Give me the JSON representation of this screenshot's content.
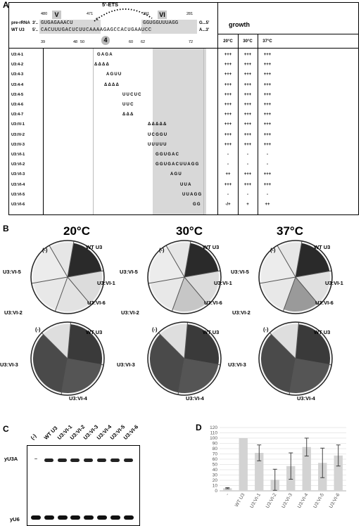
{
  "panel_a": {
    "label": "A",
    "ets_label": "5'-ETS",
    "box_v": "V",
    "box_vi": "VI",
    "box_4": "4",
    "pre_rrna_label": "pre-rRNA",
    "wt_u3_label": "WT U3",
    "pre_3prime": "3'..",
    "pre_seq_left": "GUGAGAAACU",
    "pre_seq_right": "GGUGGUUUAGG",
    "pre_end": "G...5'",
    "wt_5prime": "5'..",
    "wt_seq": "CACUUUGACUCUUCAAAAGAGCCACUGAAUCC",
    "wt_end": "A...3'",
    "num_480": "480",
    "num_471": "471",
    "num_c": "C",
    "num_291": "291",
    "num_281": "281",
    "num_39": "39",
    "num_48": "48",
    "num_50": "50",
    "num_60": "60",
    "num_62": "62",
    "num_72": "72",
    "growth_title": "growth",
    "temps": [
      "20°C",
      "30°C",
      "37°C"
    ],
    "rows": [
      {
        "name": "U3:4-1",
        "seq": "GAGA",
        "g": [
          "+++",
          "+++",
          "+++"
        ]
      },
      {
        "name": "U3:4-2",
        "seq": "ΔΔΔΔ",
        "g": [
          "+++",
          "+++",
          "+++"
        ]
      },
      {
        "name": "U3:4-3",
        "seq": "AGUU",
        "g": [
          "+++",
          "+++",
          "+++"
        ]
      },
      {
        "name": "U3:4-4",
        "seq": "ΔΔΔΔ",
        "g": [
          "+++",
          "+++",
          "+++"
        ]
      },
      {
        "name": "U3:4-5",
        "seq": "UUCUC",
        "g": [
          "+++",
          "+++",
          "+++"
        ]
      },
      {
        "name": "U3:4-6",
        "seq": "UUC",
        "g": [
          "+++",
          "+++",
          "+++"
        ]
      },
      {
        "name": "U3:4-7",
        "seq": "ΔΔΔ",
        "g": [
          "+++",
          "+++",
          "+++"
        ]
      },
      {
        "name": "U3:IV-1",
        "seq": "ΔΔΔΔΔ",
        "g": [
          "+++",
          "+++",
          "+++"
        ]
      },
      {
        "name": "U3:IV-2",
        "seq": "UCGGU",
        "g": [
          "+++",
          "+++",
          "+++"
        ]
      },
      {
        "name": "U3:IV-3",
        "seq": "UUUUU",
        "g": [
          "+++",
          "+++",
          "+++"
        ]
      },
      {
        "name": "U3:VI-1",
        "seq": "GGUGAC",
        "g": [
          "-",
          "-",
          "-"
        ]
      },
      {
        "name": "U3:VI-2",
        "seq": "GGUGACUUAGG",
        "g": [
          "-",
          "-",
          "-"
        ]
      },
      {
        "name": "U3:VI-3",
        "seq": "AGU",
        "g": [
          "++",
          "+++",
          "+++"
        ]
      },
      {
        "name": "U3:VI-4",
        "seq": "UUA",
        "g": [
          "+++",
          "+++",
          "+++"
        ]
      },
      {
        "name": "U3:VI-5",
        "seq": "UUAGG",
        "g": [
          "-",
          "-",
          "-"
        ]
      },
      {
        "name": "U3:VI-6",
        "seq": "GG",
        "g": [
          "-/+",
          "+",
          "++"
        ]
      }
    ]
  },
  "panel_b": {
    "label": "B",
    "temps": [
      "20°C",
      "30°C",
      "37°C"
    ],
    "plate_labels_top": [
      "(-)",
      "WT U3",
      "U3:VI-1",
      "U3:VI-6",
      "U3:VI-2",
      "U3:VI-5"
    ],
    "plate_labels_bottom": [
      "(-)",
      "WT U3",
      "U3:VI-3",
      "U3:VI-4"
    ]
  },
  "panel_c": {
    "label": "C",
    "columns": [
      "(-)",
      "WT U3",
      "U3:VI-1",
      "U3:VI-2",
      "U3:VI-3",
      "U3:VI-4",
      "U3:VI-5",
      "U3:VI-6"
    ],
    "band_top": "yU3A",
    "band_bottom": "yU6"
  },
  "chart_data": {
    "type": "bar",
    "title": "",
    "label": "D",
    "categories": [
      "-",
      "WT U3",
      "U3:VI-1",
      "U3:VI-2",
      "U3:VI-3",
      "U3:VI-4",
      "U3:VI-5",
      "U3:VI-6"
    ],
    "values": [
      5,
      100,
      72,
      21,
      47,
      83,
      53,
      67
    ],
    "errors": [
      1,
      0,
      15,
      20,
      25,
      17,
      28,
      20
    ],
    "ylim": [
      0,
      120
    ],
    "yticks": [
      0,
      10,
      20,
      30,
      40,
      50,
      60,
      70,
      80,
      90,
      100,
      110,
      120
    ],
    "grid": true,
    "colors": {
      "bar": "#d3d3d3",
      "error": "#333333",
      "grid": "#e3e3e3"
    }
  }
}
